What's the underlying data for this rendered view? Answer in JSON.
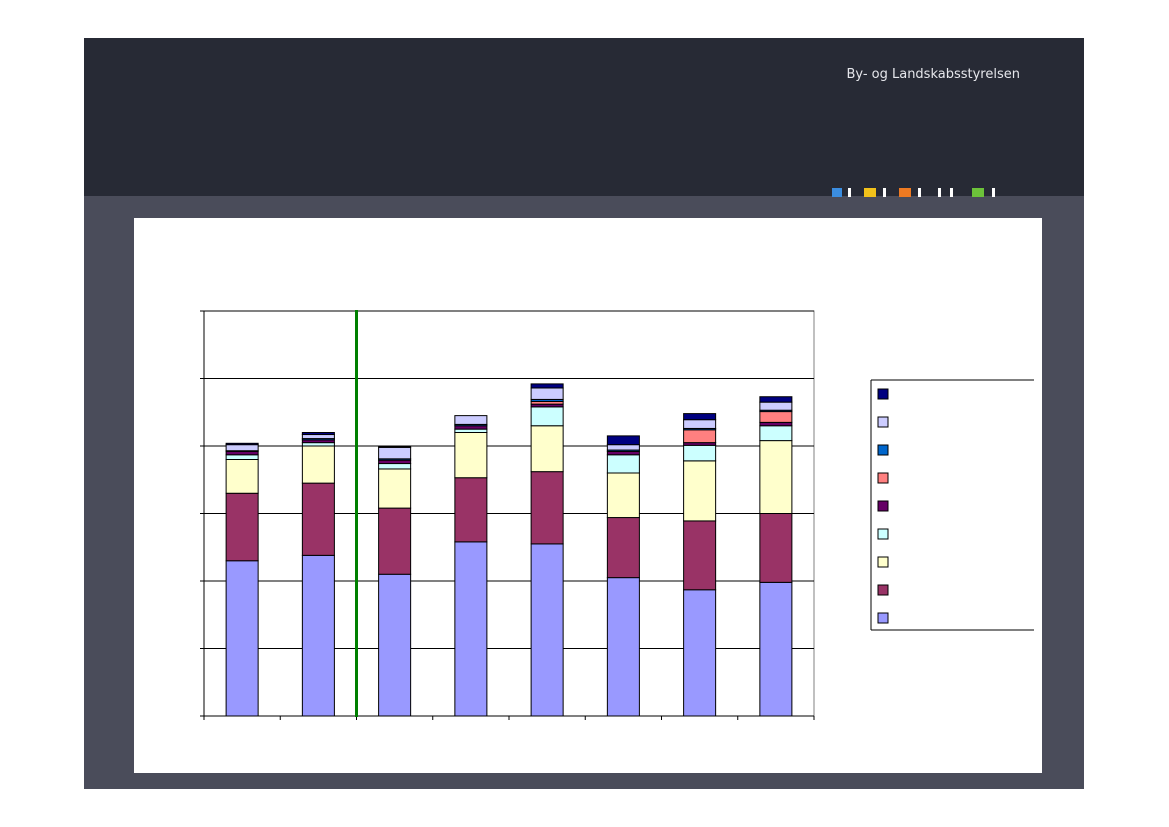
{
  "header": {
    "agency_name": "By- og Landskabsstyrelsen",
    "logo_colors": [
      "#3b8de0",
      "#f2c21a",
      "#ffffff",
      "#ffffff",
      "#ee7a22",
      "#ffffff",
      "#6cc23a",
      "#ffffff"
    ]
  },
  "colors": {
    "slide_background": "#4a4c5a",
    "header_background": "#272a35",
    "divider_line": "#008000",
    "gridline": "#000000"
  },
  "chart_data": {
    "type": "bar",
    "stacked": true,
    "grid": true,
    "legend_position": "right",
    "categories": [
      "",
      "",
      "",
      "",
      "",
      "",
      "",
      ""
    ],
    "ylim": [
      0,
      6
    ],
    "y_gridlines": [
      1,
      2,
      3,
      4,
      5,
      6
    ],
    "vertical_divider_after_category": 2,
    "series": [
      {
        "color": "#9999ff",
        "values": [
          2.3,
          2.38,
          2.1,
          2.58,
          2.55,
          2.05,
          1.87,
          1.98
        ]
      },
      {
        "color": "#993366",
        "values": [
          1.0,
          1.07,
          0.98,
          0.95,
          1.07,
          0.89,
          1.02,
          1.02
        ]
      },
      {
        "color": "#ffffcc",
        "values": [
          0.5,
          0.55,
          0.58,
          0.67,
          0.68,
          0.66,
          0.89,
          1.08
        ]
      },
      {
        "color": "#ccffff",
        "values": [
          0.07,
          0.05,
          0.08,
          0.05,
          0.28,
          0.27,
          0.23,
          0.22
        ]
      },
      {
        "color": "#660066",
        "values": [
          0.05,
          0.04,
          0.05,
          0.05,
          0.04,
          0.05,
          0.04,
          0.05
        ]
      },
      {
        "color": "#ff8080",
        "values": [
          0.0,
          0.0,
          0.0,
          0.0,
          0.04,
          0.0,
          0.19,
          0.16
        ]
      },
      {
        "color": "#0066cc",
        "values": [
          0.01,
          0.02,
          0.02,
          0.02,
          0.03,
          0.02,
          0.02,
          0.02
        ]
      },
      {
        "color": "#ccccff",
        "values": [
          0.09,
          0.06,
          0.17,
          0.13,
          0.17,
          0.08,
          0.13,
          0.12
        ]
      },
      {
        "color": "#000080",
        "values": [
          0.02,
          0.03,
          0.01,
          0.0,
          0.06,
          0.13,
          0.09,
          0.08
        ]
      }
    ],
    "legend_order_top_to_bottom": [
      8,
      7,
      6,
      5,
      4,
      3,
      2,
      1,
      0
    ]
  }
}
